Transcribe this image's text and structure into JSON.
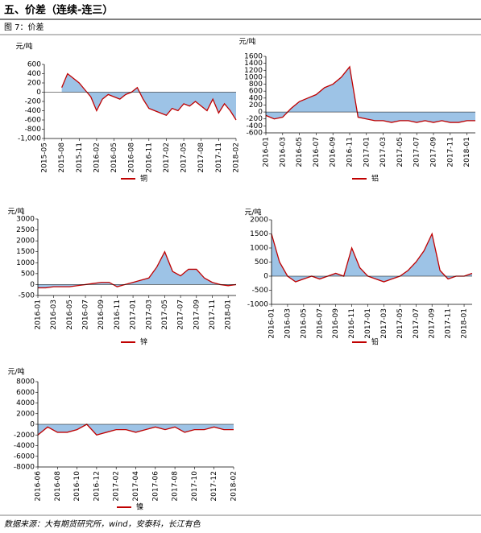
{
  "title": "五、价差（连续-连三）",
  "caption": "图 7：价差",
  "source": "数据来源：大有期货研究所，wind，安泰科，长江有色",
  "chart_data": [
    {
      "type": "line",
      "y_label": "元/吨",
      "area_color": "#9dc3e6",
      "categories": [
        "2015-05",
        null,
        null,
        "2015-08",
        null,
        null,
        "2015-11",
        null,
        null,
        "2016-02",
        null,
        null,
        "2016-05",
        null,
        null,
        "2016-08",
        null,
        null,
        "2016-11",
        null,
        null,
        "2017-02",
        null,
        null,
        "2017-05",
        null,
        null,
        "2017-08",
        null,
        null,
        "2017-11",
        null,
        null,
        "2018-02"
      ],
      "series": [
        {
          "name": "铜",
          "color": "#c00000",
          "values": [
            null,
            null,
            null,
            100,
            400,
            300,
            200,
            50,
            -100,
            -400,
            -150,
            -50,
            -100,
            -150,
            -50,
            0,
            100,
            -150,
            -350,
            -400,
            -450,
            -500,
            -350,
            -400,
            -250,
            -300,
            -200,
            -300,
            -400,
            -150,
            -450,
            -250,
            -400,
            -600
          ]
        }
      ],
      "ylim": [
        -1000,
        600
      ],
      "yticks": [
        {
          "value": -1000,
          "label": "-1,000"
        },
        -800,
        -600,
        -400,
        -200,
        0,
        200,
        400,
        600
      ]
    },
    {
      "type": "line",
      "y_label": "元/吨",
      "area_color": "#9dc3e6",
      "categories": [
        "2016-01",
        null,
        "2016-03",
        null,
        "2016-05",
        null,
        "2016-07",
        null,
        "2016-09",
        null,
        "2016-11",
        null,
        "2017-01",
        null,
        "2017-03",
        null,
        "2017-05",
        null,
        "2017-07",
        null,
        "2017-09",
        null,
        "2017-11",
        null,
        "2018-01",
        null
      ],
      "series": [
        {
          "name": "铝",
          "color": "#c00000",
          "values": [
            -100,
            -200,
            -150,
            100,
            300,
            400,
            500,
            700,
            800,
            1000,
            1300,
            -150,
            -200,
            -250,
            -250,
            -300,
            -250,
            -250,
            -300,
            -250,
            -300,
            -250,
            -300,
            -300,
            -250,
            -250
          ]
        }
      ],
      "ylim": [
        -600,
        1600
      ],
      "yticks": [
        -600,
        -400,
        -200,
        0,
        200,
        400,
        600,
        800,
        1000,
        1200,
        1400,
        1600
      ]
    },
    {
      "type": "line",
      "y_label": "元/吨",
      "area_color": "#9dc3e6",
      "categories": [
        "2016-01",
        null,
        "2016-03",
        null,
        "2016-05",
        null,
        "2016-07",
        null,
        "2016-09",
        null,
        "2016-11",
        null,
        "2017-01",
        null,
        "2017-03",
        null,
        "2017-05",
        null,
        "2017-07",
        null,
        "2017-09",
        null,
        "2017-11",
        null,
        "2018-01",
        null
      ],
      "series": [
        {
          "name": "锌",
          "color": "#c00000",
          "values": [
            -150,
            -150,
            -100,
            -100,
            -100,
            -50,
            0,
            50,
            100,
            100,
            -100,
            0,
            100,
            200,
            300,
            800,
            1500,
            600,
            400,
            700,
            700,
            300,
            100,
            0,
            -50,
            0
          ]
        }
      ],
      "ylim": [
        -500,
        3000
      ],
      "yticks": [
        -500,
        0,
        500,
        1000,
        1500,
        2000,
        2500,
        3000
      ]
    },
    {
      "type": "line",
      "y_label": "元/吨",
      "area_color": "#9dc3e6",
      "categories": [
        "2016-01",
        null,
        "2016-03",
        null,
        "2016-05",
        null,
        "2016-07",
        null,
        "2016-09",
        null,
        "2016-11",
        null,
        "2017-01",
        null,
        "2017-03",
        null,
        "2017-05",
        null,
        "2017-07",
        null,
        "2017-09",
        null,
        "2017-11",
        null,
        "2018-01",
        null
      ],
      "series": [
        {
          "name": "铅",
          "color": "#c00000",
          "values": [
            1500,
            500,
            0,
            -200,
            -100,
            0,
            -100,
            0,
            100,
            0,
            1000,
            300,
            0,
            -100,
            -200,
            -100,
            0,
            200,
            500,
            900,
            1500,
            200,
            -100,
            0,
            0,
            100
          ]
        }
      ],
      "ylim": [
        -1000,
        2000
      ],
      "yticks": [
        -1000,
        -500,
        0,
        500,
        1000,
        1500,
        2000
      ]
    },
    {
      "type": "line",
      "y_label": "元/吨",
      "area_color": "#9dc3e6",
      "categories": [
        "2016-06",
        null,
        "2016-08",
        null,
        "2016-10",
        null,
        "2016-12",
        null,
        "2017-02",
        null,
        "2017-04",
        null,
        "2017-06",
        null,
        "2017-08",
        null,
        "2017-10",
        null,
        "2017-12",
        null,
        "2018-02"
      ],
      "series": [
        {
          "name": "镍",
          "color": "#c00000",
          "values": [
            -2000,
            -500,
            -1500,
            -1500,
            -1000,
            0,
            -2000,
            -1500,
            -1000,
            -1000,
            -1500,
            -1000,
            -500,
            -1000,
            -500,
            -1500,
            -1000,
            -1000,
            -500,
            -1000,
            -1000
          ]
        }
      ],
      "ylim": [
        -8000,
        8000
      ],
      "yticks": [
        -8000,
        -6000,
        -4000,
        -2000,
        0,
        2000,
        4000,
        6000,
        8000
      ]
    }
  ]
}
